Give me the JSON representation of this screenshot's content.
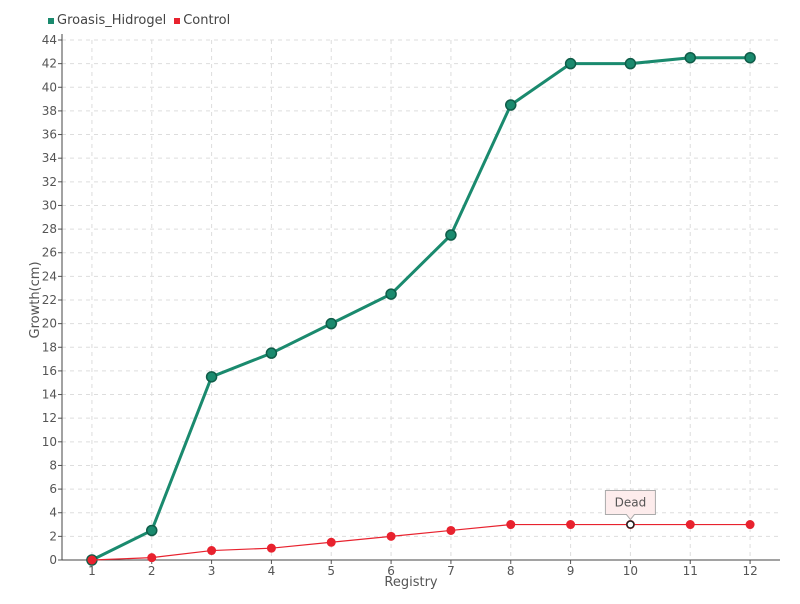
{
  "chart_data": {
    "type": "line",
    "title": "",
    "xlabel": "Registry",
    "ylabel": "Growth(cm)",
    "categories": [
      "1",
      "2",
      "3",
      "4",
      "5",
      "6",
      "7",
      "8",
      "9",
      "10",
      "11",
      "12"
    ],
    "ylim": [
      0,
      44
    ],
    "yticks": [
      0,
      2,
      4,
      6,
      8,
      10,
      12,
      14,
      16,
      18,
      20,
      22,
      24,
      26,
      28,
      30,
      32,
      34,
      36,
      38,
      40,
      42,
      44
    ],
    "grid": true,
    "legend_position": "top-left",
    "series": [
      {
        "name": "Groasis_Hidrogel",
        "color": "#1a8a6e",
        "values": [
          0,
          2.5,
          15.5,
          17.5,
          20,
          22.5,
          27.5,
          38.5,
          42,
          42,
          42.5,
          42.5
        ]
      },
      {
        "name": "Control",
        "color": "#e8222e",
        "values": [
          0,
          0.2,
          0.8,
          1,
          1.5,
          2,
          2.5,
          3,
          3,
          3,
          3,
          3
        ]
      }
    ],
    "annotations": [
      {
        "series": "Control",
        "category": "10",
        "text": "Dead"
      }
    ]
  }
}
